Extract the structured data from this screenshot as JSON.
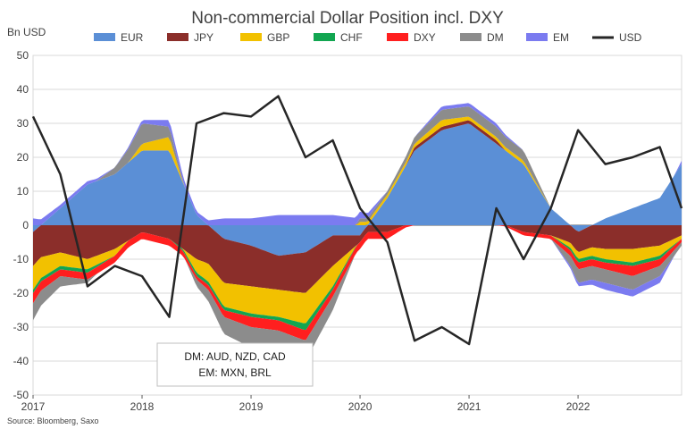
{
  "chart_data": {
    "type": "area",
    "title": "Non-commercial Dollar Position incl. DXY",
    "ylabel": "Bn USD",
    "xlabel": "",
    "ylim": [
      -50,
      50
    ],
    "yticks": [
      50,
      40,
      30,
      20,
      10,
      0,
      -10,
      -20,
      -30,
      -40,
      -50
    ],
    "xticks": [
      "2017",
      "2018",
      "2019",
      "2020",
      "2021",
      "2022"
    ],
    "x_range": [
      2017.0,
      2022.95
    ],
    "grid": "horizontal",
    "legend_position": "top",
    "source": "Source: Bloomberg, Saxo",
    "annotation": [
      "DM: AUD, NZD, CAD",
      "EM: MXN, BRL"
    ],
    "x": [
      2017.0,
      2017.25,
      2017.5,
      2017.75,
      2018.0,
      2018.25,
      2018.5,
      2018.75,
      2019.0,
      2019.25,
      2019.5,
      2019.75,
      2020.0,
      2020.25,
      2020.5,
      2020.75,
      2021.0,
      2021.25,
      2021.5,
      2021.75,
      2022.0,
      2022.25,
      2022.5,
      2022.75,
      2022.95
    ],
    "series": [
      {
        "name": "EUR",
        "color": "#5b8fd6",
        "values": [
          -2,
          5,
          12,
          15,
          22,
          22,
          3,
          -4,
          -6,
          -9,
          -8,
          -3,
          -3,
          8,
          22,
          28,
          30,
          24,
          18,
          5,
          -2,
          2,
          5,
          8,
          18
        ]
      },
      {
        "name": "JPY",
        "color": "#8b2e2a",
        "values": [
          -10,
          -8,
          -10,
          -7,
          -2,
          -4,
          -10,
          -13,
          -12,
          -10,
          -12,
          -9,
          -2,
          -2,
          1,
          1,
          1,
          1,
          -2,
          -3,
          -6,
          -7,
          -7,
          -6,
          -3
        ]
      },
      {
        "name": "GBP",
        "color": "#f2c100",
        "values": [
          -7,
          -4,
          -3,
          -2,
          2,
          4,
          -4,
          -7,
          -8,
          -8,
          -9,
          -6,
          1,
          1,
          1,
          2,
          1,
          1,
          1,
          0,
          -2,
          -3,
          -4,
          -3,
          -1
        ]
      },
      {
        "name": "CHF",
        "color": "#12a651",
        "values": [
          -1,
          -1,
          -1,
          0,
          0,
          0,
          -1,
          -1,
          -1,
          -1,
          -2,
          -1,
          0,
          0,
          0,
          0,
          0,
          0,
          0,
          0,
          -1,
          -1,
          -1,
          -1,
          0
        ]
      },
      {
        "name": "DXY",
        "color": "#ff1f1f",
        "values": [
          -3,
          -2,
          -2,
          -2,
          -2,
          -2,
          -1,
          -2,
          -3,
          -3,
          -3,
          -2,
          -2,
          -2,
          0,
          0,
          0,
          0,
          -1,
          -1,
          -2,
          -2,
          -3,
          -2,
          -1
        ]
      },
      {
        "name": "DM",
        "color": "#8c8c8c",
        "values": [
          -5,
          -3,
          -1,
          2,
          6,
          3,
          -2,
          -5,
          -6,
          -6,
          -6,
          -4,
          1,
          1,
          2,
          3,
          3,
          3,
          3,
          0,
          -4,
          -4,
          -4,
          -3,
          -1
        ]
      },
      {
        "name": "EM",
        "color": "#7b7bf0",
        "values": [
          2,
          1,
          1,
          0,
          1,
          2,
          1,
          2,
          2,
          3,
          3,
          3,
          2,
          0,
          0,
          1,
          1,
          1,
          0,
          0,
          -1,
          -2,
          -2,
          -2,
          1
        ]
      },
      {
        "name": "USD",
        "color": "#262626",
        "type": "line",
        "values": [
          32,
          15,
          -18,
          -12,
          -15,
          -27,
          30,
          33,
          32,
          38,
          20,
          25,
          5,
          -5,
          -34,
          -30,
          -35,
          5,
          -10,
          5,
          28,
          18,
          20,
          23,
          5
        ]
      }
    ]
  }
}
